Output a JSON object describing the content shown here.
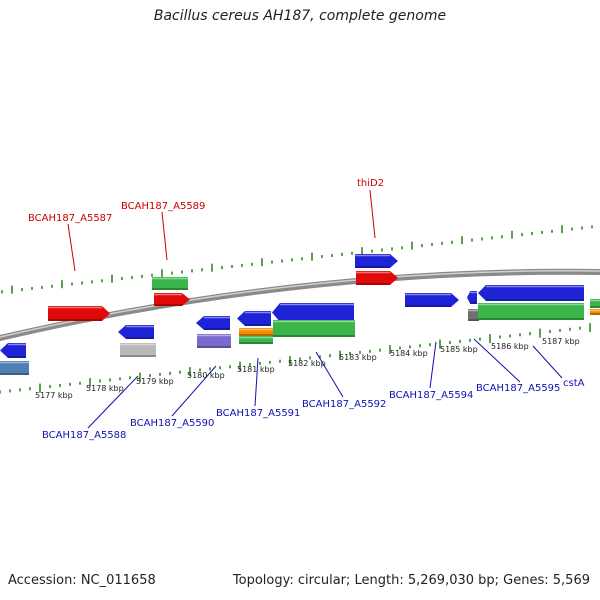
{
  "title": "Bacillus cereus AH187, complete genome",
  "footer": {
    "accession": "Accession: NC_011658",
    "summary": "Topology: circular; Length: 5,269,030 bp; Genes: 5,569"
  },
  "colors": {
    "backbone": "#8a8a8a",
    "tick": "#2e8b1e",
    "gene_blue": "#1f23d6",
    "gene_red": "#e00a0a",
    "gene_green": "#39b54a",
    "gene_orange": "#f08c00",
    "gene_purple": "#7a6ad0",
    "gene_steel": "#4d7fb5",
    "gene_grey": "#b9b9b9",
    "gene_darkgrey": "#707070",
    "label_red": "#cc0000",
    "label_blue": "#1010b0"
  },
  "scale_labels": [
    "5177 kbp",
    "5178 kbp",
    "5179 kbp",
    "5180 kbp",
    "5181 kbp",
    "5182 kbp",
    "5183 kbp",
    "5184 kbp",
    "5185 kbp",
    "5186 kbp",
    "5187 kbp"
  ],
  "gene_labels_top": [
    "BCAH187_A5587",
    "BCAH187_A5589",
    "thiD2"
  ],
  "gene_labels_bottom": [
    "BCAH187_A5588",
    "BCAH187_A5590",
    "BCAH187_A5591",
    "BCAH187_A5592",
    "BCAH187_A5594",
    "BCAH187_A5595",
    "cstA"
  ]
}
